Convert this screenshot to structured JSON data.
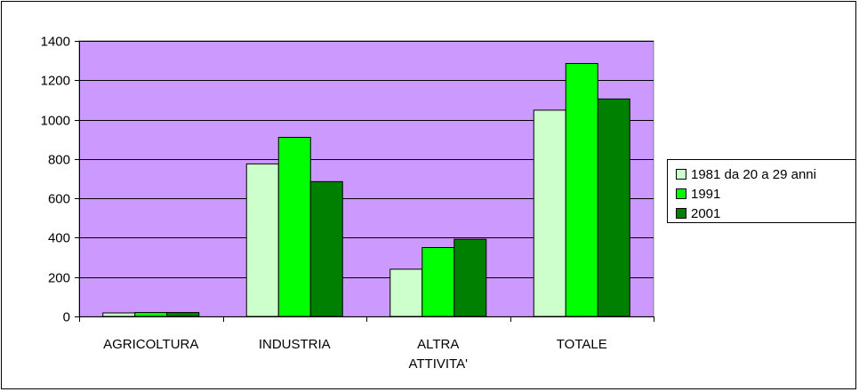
{
  "chart_data": {
    "type": "bar",
    "categories": [
      "AGRICOLTURA",
      "INDUSTRIA",
      "ALTRA ATTIVITA'",
      "TOTALE"
    ],
    "category_lines": [
      [
        "AGRICOLTURA"
      ],
      [
        "INDUSTRIA"
      ],
      [
        "ALTRA",
        "ATTIVITA'"
      ],
      [
        "TOTALE"
      ]
    ],
    "series": [
      {
        "name": "1981 da 20 a 29 anni",
        "color": "#ccffcc",
        "values": [
          18,
          775,
          240,
          1048
        ]
      },
      {
        "name": "1991",
        "color": "#00ff00",
        "values": [
          20,
          910,
          350,
          1285
        ]
      },
      {
        "name": "2001",
        "color": "#008000",
        "values": [
          20,
          685,
          392,
          1105
        ]
      }
    ],
    "ylim": [
      0,
      1400
    ],
    "yticks": [
      0,
      200,
      400,
      600,
      800,
      1000,
      1200,
      1400
    ],
    "grid": true,
    "plot_background": "#cc99ff",
    "legend_position": "right",
    "title": "",
    "xlabel": "",
    "ylabel": ""
  }
}
